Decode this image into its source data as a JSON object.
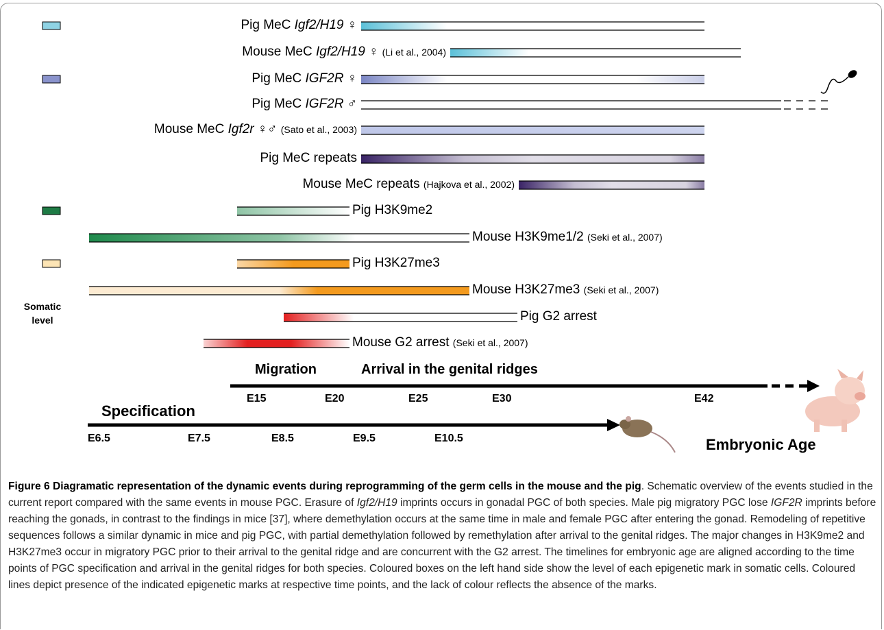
{
  "rows": [
    {
      "label": "Pig MeC",
      "gene": "Igf2/H19",
      "sex": "♀"
    },
    {
      "label": "Mouse MeC",
      "gene": "Igf2/H19",
      "sex": "♀",
      "citation": "(Li et al., 2004)"
    },
    {
      "label": "Pig MeC",
      "gene": "IGF2R",
      "sex": "♀"
    },
    {
      "label": "Pig MeC",
      "gene": "IGF2R",
      "sex": "♂"
    },
    {
      "label": "Mouse MeC",
      "gene": "Igf2r",
      "sex": "♀♂",
      "citation": "(Sato et al., 2003)"
    },
    {
      "label": "Pig MeC repeats"
    },
    {
      "label": "Mouse MeC repeats",
      "citation": "(Hajkova et al., 2002)"
    },
    {
      "label": "Pig H3K9me2"
    },
    {
      "label": "Mouse H3K9me1/2",
      "citation": "(Seki et al., 2007)"
    },
    {
      "label": "Pig H3K27me3"
    },
    {
      "label": "Mouse H3K27me3",
      "citation": "(Seki et al., 2007)"
    },
    {
      "label": "Pig G2 arrest"
    },
    {
      "label": "Mouse G2 arrest",
      "citation": "(Seki et al., 2007)"
    }
  ],
  "somatic_level": [
    "Somatic",
    "level"
  ],
  "timeline": {
    "pig_phases": [
      "Migration",
      "Arrival in the genital ridges"
    ],
    "pig_ticks": [
      "E15",
      "E20",
      "E25",
      "E30",
      "E42"
    ],
    "mouse_phase": "Specification",
    "mouse_ticks": [
      "E6.5",
      "E7.5",
      "E8.5",
      "E9.5",
      "E10.5"
    ],
    "axis_label": "Embryonic Age"
  },
  "caption": {
    "label": "Figure 6",
    "title": "Diagramatic representation of the dynamic events during reprogramming of the germ cells in the mouse and the pig",
    "body": [
      ". Schematic overview of the events studied in the current report compared with the same events in mouse PGC. Erasure of ",
      "Igf2/H19",
      " imprints occurs in gonadal PGC of both species. Male pig migratory PGC lose ",
      "IGF2R",
      " imprints before reaching the gonads, in contrast to the findings in mice [37], where demethylation occurs at the same time in male and female PGC after entering the gonad. Remodeling of repetitive sequences follows a similar dynamic in mice and pig PGC, with partial demethylation followed by remethylation after arrival to the genital ridges. The major changes in H3K9me2 and H3K27me3 occur in migratory PGC prior to their arrival to the genital ridge and are concurrent with the G2 arrest. The timelines for embryonic age are aligned according to the time points of PGC specification and arrival in the genital ridges for both species. Coloured boxes on the left hand side show the level of each epigenetic mark in somatic cells. Coloured lines depict presence of the indicated epigenetic marks at respective time points, and the lack of colour reflects the absence of the marks."
    ]
  }
}
